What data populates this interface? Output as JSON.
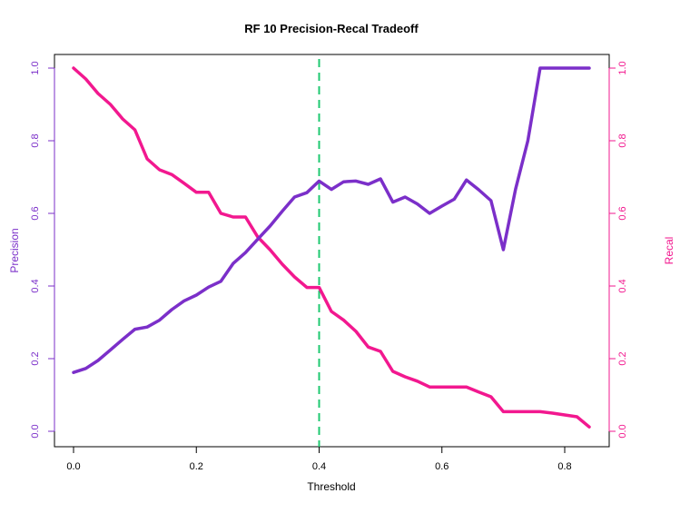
{
  "chart_data": {
    "type": "line",
    "title": "RF 10 Precision-Recal Tradeoff",
    "xlabel": "Threshold",
    "ylabel_left": "Precision",
    "ylabel_right": "Recal",
    "xlim": [
      0,
      0.84
    ],
    "ylim": [
      0,
      1
    ],
    "x_ticks": [
      "0.0",
      "0.2",
      "0.4",
      "0.6",
      "0.8"
    ],
    "y_ticks": [
      "0.0",
      "0.2",
      "0.4",
      "0.6",
      "0.8",
      "1.0"
    ],
    "threshold_marker": 0.4,
    "grid": false,
    "x": [
      0.0,
      0.02,
      0.04,
      0.06,
      0.08,
      0.1,
      0.12,
      0.14,
      0.16,
      0.18,
      0.2,
      0.22,
      0.24,
      0.26,
      0.28,
      0.3,
      0.32,
      0.34,
      0.36,
      0.38,
      0.4,
      0.42,
      0.44,
      0.46,
      0.48,
      0.5,
      0.52,
      0.54,
      0.56,
      0.58,
      0.6,
      0.62,
      0.64,
      0.66,
      0.68,
      0.7,
      0.72,
      0.74,
      0.76,
      0.78,
      0.8,
      0.82,
      0.84
    ],
    "series": [
      {
        "name": "Precision",
        "axis": "left",
        "values": [
          0.162,
          0.173,
          0.195,
          0.224,
          0.253,
          0.281,
          0.287,
          0.306,
          0.335,
          0.359,
          0.375,
          0.397,
          0.413,
          0.462,
          0.492,
          0.529,
          0.565,
          0.606,
          0.645,
          0.657,
          0.689,
          0.666,
          0.687,
          0.689,
          0.68,
          0.695,
          0.631,
          0.645,
          0.626,
          0.6,
          0.62,
          0.639,
          0.692,
          0.665,
          0.635,
          0.5,
          0.667,
          0.8,
          1.0,
          1.0,
          1.0,
          1.0,
          1.0
        ]
      },
      {
        "name": "Recal",
        "axis": "right",
        "values": [
          1.0,
          0.97,
          0.93,
          0.9,
          0.86,
          0.83,
          0.75,
          0.72,
          0.707,
          0.683,
          0.658,
          0.658,
          0.6,
          0.59,
          0.59,
          0.535,
          0.5,
          0.46,
          0.425,
          0.396,
          0.396,
          0.33,
          0.306,
          0.275,
          0.232,
          0.22,
          0.165,
          0.15,
          0.138,
          0.122,
          0.122,
          0.122,
          0.122,
          0.108,
          0.095,
          0.054,
          0.054,
          0.054,
          0.054,
          0.05,
          0.045,
          0.04,
          0.012
        ]
      }
    ],
    "colors": {
      "precision": "#7B2FC9",
      "recall": "#F2188F",
      "threshold_line": "#1FC870",
      "axis": "#000000",
      "text": "#000000"
    }
  }
}
